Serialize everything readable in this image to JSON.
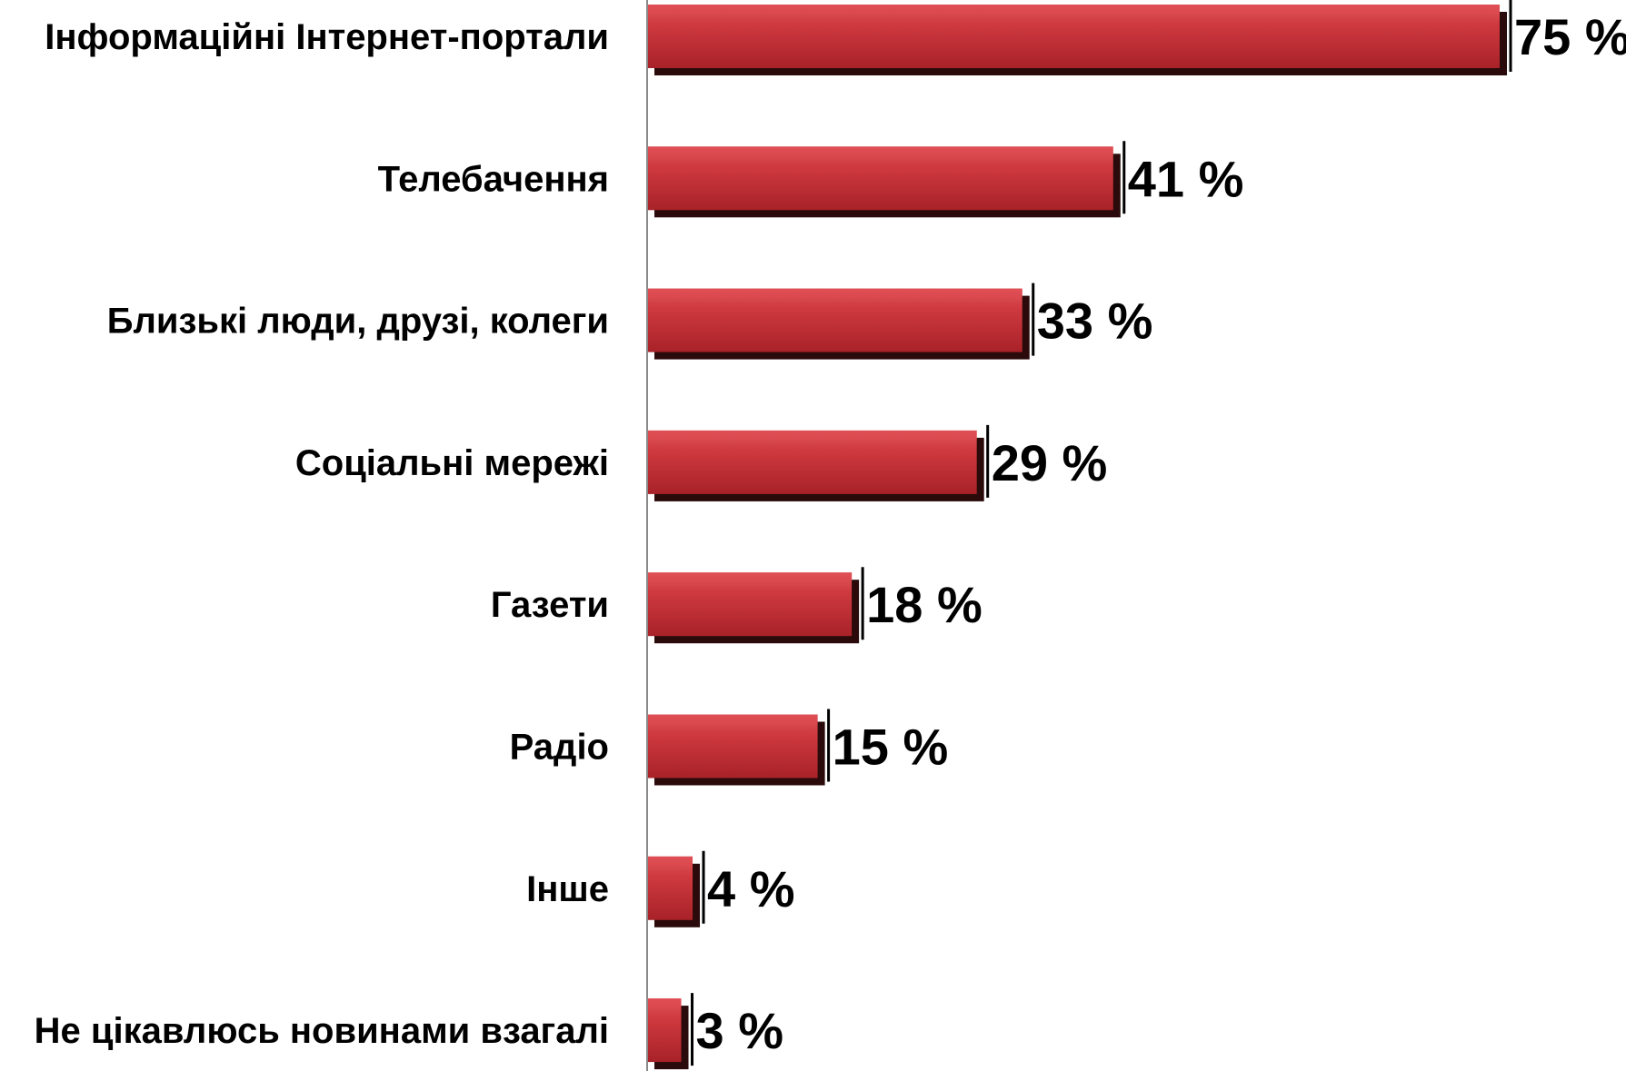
{
  "chart_data": {
    "type": "bar",
    "orientation": "horizontal",
    "categories": [
      "Інформаційні Інтернет-портали",
      "Телебачення",
      "Близькі люди, друзі, колеги",
      "Соціальні мережі",
      "Газети",
      "Радіо",
      "Інше",
      "Не цікавлюсь новинами взагалі"
    ],
    "values": [
      75,
      41,
      33,
      29,
      18,
      15,
      4,
      3
    ],
    "data_labels": [
      "75 %",
      "41 %",
      "33 %",
      "29 %",
      "18 %",
      "15 %",
      "4 %",
      "3 %"
    ],
    "title": "",
    "xlabel": "",
    "ylabel": "",
    "xlim": [
      0,
      75
    ],
    "grid": false,
    "legend": "none",
    "colors": {
      "bar": "#c8333a",
      "bar_highlight": "#dd4a50",
      "bar_shadow": "#2a0a0a",
      "axis": "#8a8a8a"
    }
  }
}
